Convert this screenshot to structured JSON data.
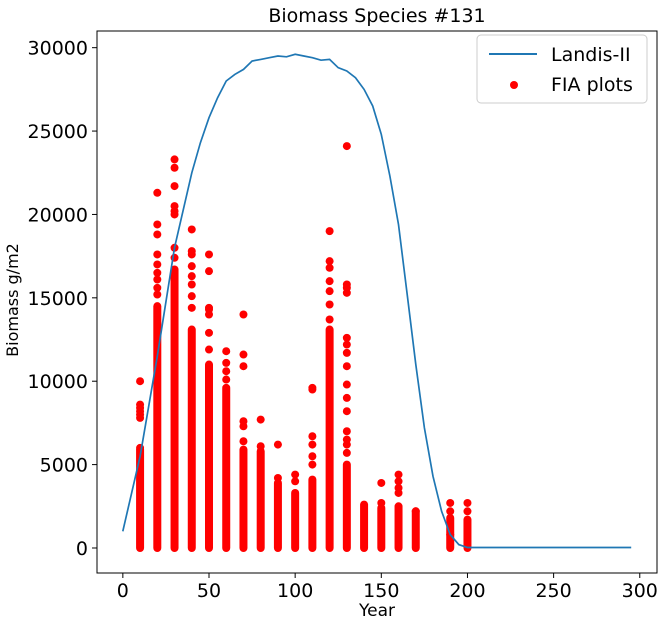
{
  "chart_data": {
    "type": "line+scatter",
    "title": "Biomass Species #131",
    "xlabel": "Year",
    "ylabel": "Biomass g/m2",
    "xlim": [
      -15,
      310
    ],
    "ylim": [
      -1500,
      31000
    ],
    "x_ticks": [
      0,
      50,
      100,
      150,
      200,
      250,
      300
    ],
    "y_ticks": [
      0,
      5000,
      10000,
      15000,
      20000,
      25000,
      30000
    ],
    "grid": false,
    "legend_position": "top-right",
    "line_series": {
      "name": "Landis-II",
      "color": "#1f77b4",
      "x": [
        0,
        10,
        20,
        30,
        40,
        45,
        50,
        55,
        60,
        65,
        70,
        75,
        80,
        85,
        90,
        95,
        100,
        105,
        110,
        115,
        120,
        125,
        130,
        135,
        140,
        145,
        150,
        155,
        160,
        165,
        170,
        175,
        180,
        185,
        190,
        195,
        200,
        210,
        220,
        230,
        240,
        250,
        260,
        270,
        280,
        290,
        295
      ],
      "y": [
        1000,
        5500,
        11500,
        18000,
        22500,
        24300,
        25800,
        27000,
        28000,
        28400,
        28700,
        29200,
        29300,
        29400,
        29500,
        29450,
        29600,
        29500,
        29400,
        29250,
        29300,
        28800,
        28600,
        28200,
        27500,
        26500,
        24800,
        22300,
        19400,
        15200,
        11000,
        7200,
        4300,
        2200,
        800,
        200,
        30,
        30,
        30,
        30,
        30,
        30,
        30,
        30,
        30,
        30,
        30
      ]
    },
    "scatter_series": {
      "name": "FIA plots",
      "color": "#ff0000",
      "points": [
        {
          "x": 10,
          "dense_max": 5900,
          "extra": [
            6000,
            7800,
            8000,
            8200,
            8400,
            8600,
            10000
          ]
        },
        {
          "x": 20,
          "dense_max": 14500,
          "extra": [
            15200,
            15600,
            16100,
            16500,
            17000,
            17600,
            18800,
            19400,
            21300
          ]
        },
        {
          "x": 30,
          "dense_max": 16700,
          "extra": [
            17400,
            18000,
            20000,
            20200,
            20500,
            21700,
            22800,
            23300
          ]
        },
        {
          "x": 40,
          "dense_max": 13100,
          "extra": [
            14400,
            15100,
            15800,
            16300,
            16900,
            17600,
            17800,
            19100
          ]
        },
        {
          "x": 50,
          "dense_max": 11000,
          "extra": [
            11900,
            12900,
            14000,
            14300,
            14400,
            16600,
            17600
          ]
        },
        {
          "x": 60,
          "dense_max": 9600,
          "extra": [
            10100,
            10600,
            11100,
            11800
          ]
        },
        {
          "x": 70,
          "dense_max": 5900,
          "extra": [
            6400,
            7300,
            7600,
            10900,
            11600,
            14000
          ]
        },
        {
          "x": 80,
          "dense_max": 5800,
          "extra": [
            6100,
            7700
          ]
        },
        {
          "x": 90,
          "dense_max": 3900,
          "extra": [
            4200,
            6200
          ]
        },
        {
          "x": 100,
          "dense_max": 3300,
          "extra": [
            4000,
            4400
          ]
        },
        {
          "x": 110,
          "dense_max": 4100,
          "extra": [
            5000,
            5500,
            6200,
            6700,
            9500,
            9600
          ]
        },
        {
          "x": 120,
          "dense_max": 13100,
          "extra": [
            13700,
            14600,
            15400,
            16000,
            16800,
            17200,
            19000
          ]
        },
        {
          "x": 130,
          "dense_max": 5000,
          "extra": [
            5700,
            6200,
            6500,
            7000,
            8200,
            9000,
            9800,
            10900,
            11700,
            12200,
            12600,
            15300,
            15600,
            15800,
            24100
          ]
        },
        {
          "x": 140,
          "dense_max": 2600,
          "extra": []
        },
        {
          "x": 150,
          "dense_max": 2400,
          "extra": [
            2700,
            3900
          ]
        },
        {
          "x": 160,
          "dense_max": 2500,
          "extra": [
            3300,
            3600,
            4000,
            4400
          ]
        },
        {
          "x": 170,
          "dense_max": 2200,
          "extra": [
            2200
          ]
        },
        {
          "x": 190,
          "dense_max": 1800,
          "extra": [
            2200,
            2700,
            800
          ]
        },
        {
          "x": 200,
          "dense_max": 1700,
          "extra": [
            2200,
            2700
          ]
        }
      ],
      "dense_min": 0
    }
  }
}
